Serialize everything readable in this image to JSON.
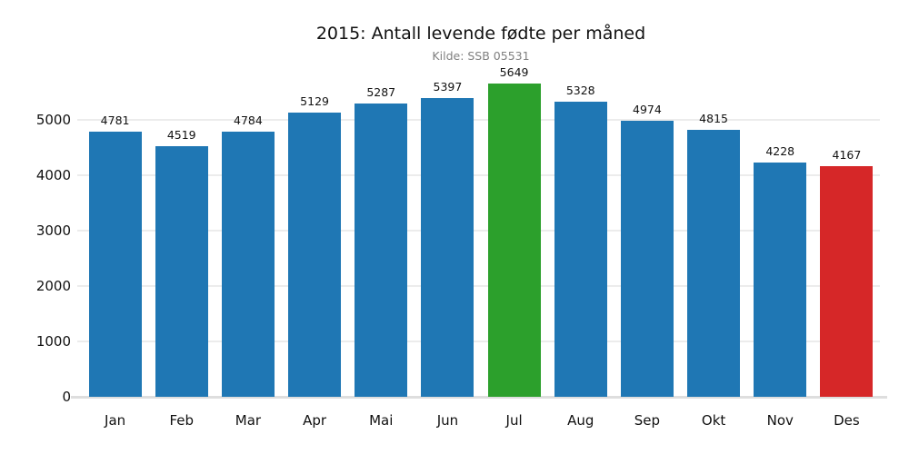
{
  "chart_data": {
    "type": "bar",
    "title": "2015: Antall levende fødte per måned",
    "subtitle": "Kilde: SSB 05531",
    "categories": [
      "Jan",
      "Feb",
      "Mar",
      "Apr",
      "Mai",
      "Jun",
      "Jul",
      "Aug",
      "Sep",
      "Okt",
      "Nov",
      "Des"
    ],
    "values": [
      4781,
      4519,
      4784,
      5129,
      5287,
      5397,
      5649,
      5328,
      4974,
      4815,
      4228,
      4167
    ],
    "bar_colors": [
      "#1f77b4",
      "#1f77b4",
      "#1f77b4",
      "#1f77b4",
      "#1f77b4",
      "#1f77b4",
      "#2ca02c",
      "#1f77b4",
      "#1f77b4",
      "#1f77b4",
      "#1f77b4",
      "#d62728"
    ],
    "color_legend": {
      "default": "#1f77b4",
      "max_highlight": "#2ca02c",
      "min_highlight": "#d62728"
    },
    "value_labels_shown": true,
    "xlabel": "",
    "ylabel": "",
    "yticks": [
      0,
      1000,
      2000,
      3000,
      4000,
      5000
    ],
    "ylim": [
      0,
      5930
    ],
    "grid": "horizontal",
    "gridline_color": "#ececec",
    "axis_line_color": "#dedede",
    "background_color": "#ffffff",
    "legend_position": "none"
  }
}
